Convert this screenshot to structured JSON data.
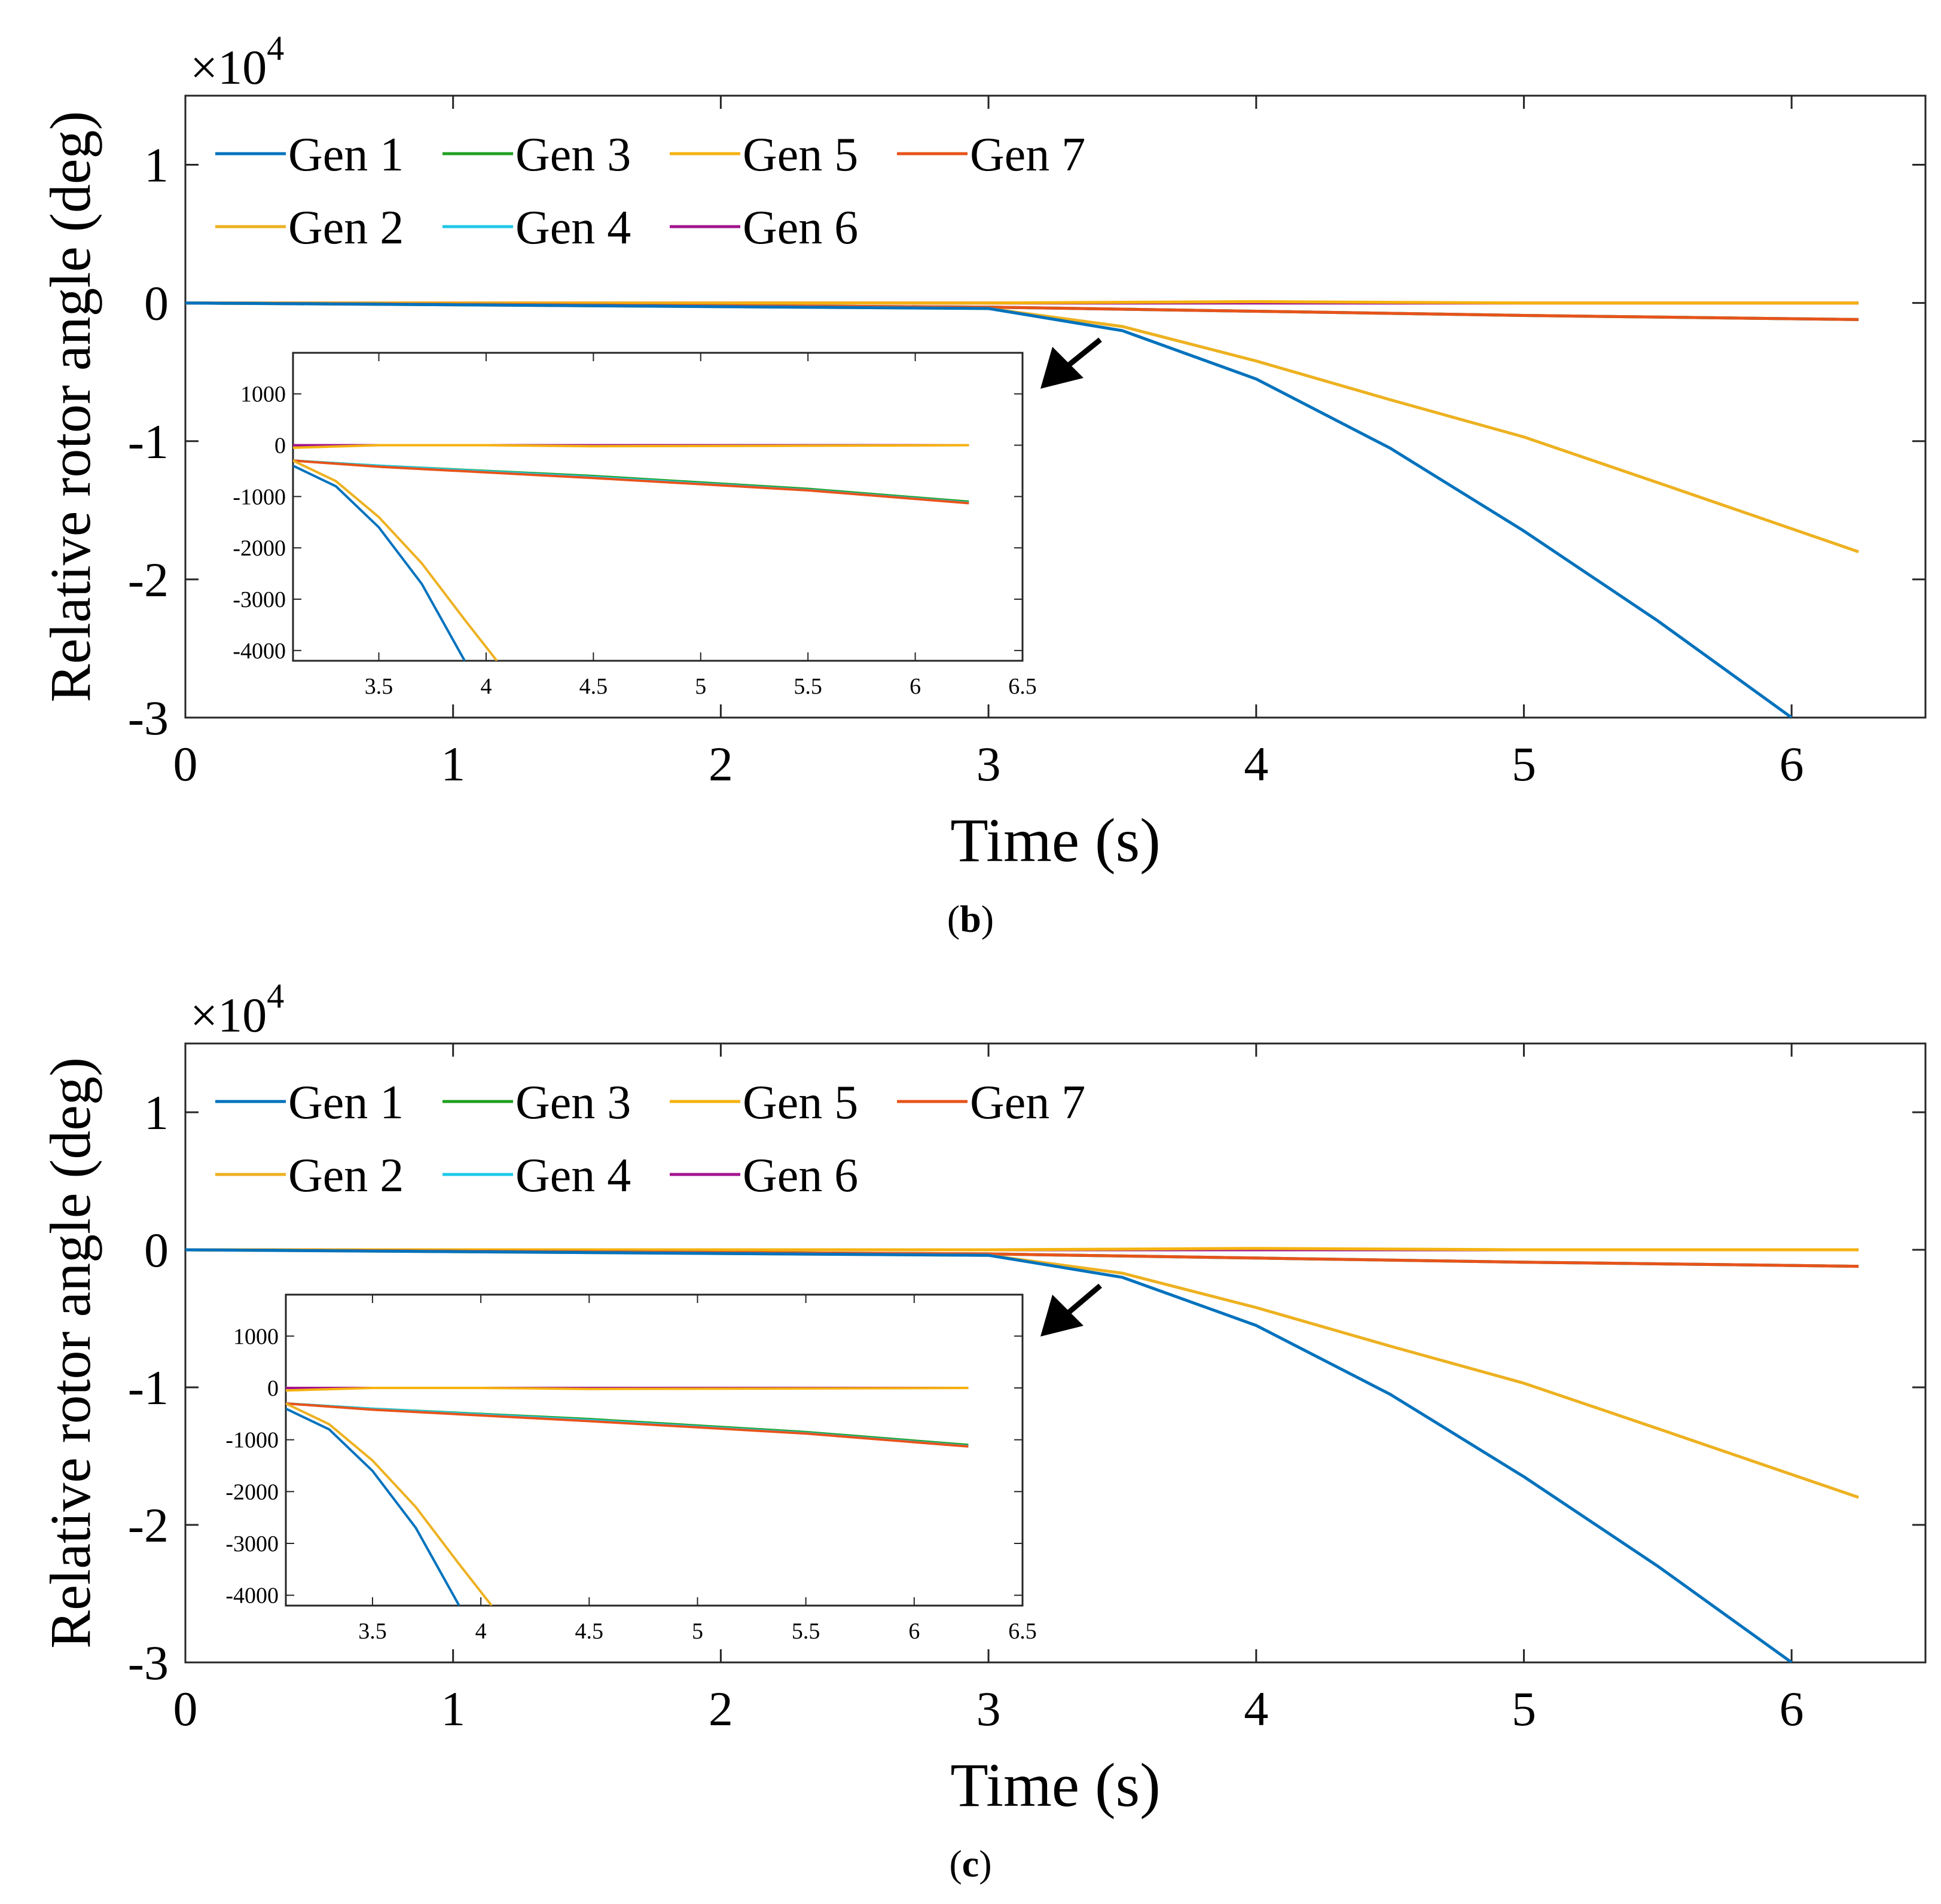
{
  "colors": {
    "Gen 1": "#0072bd",
    "Gen 2": "#edb120",
    "Gen 3": "#20a020",
    "Gen 4": "#1ec8e8",
    "Gen 5": "#f5b20f",
    "Gen 6": "#a2148e",
    "Gen 7": "#e8531a"
  },
  "chart_data": [
    {
      "type": "line",
      "panel_label": "b",
      "xlabel": "Time (s)",
      "ylabel": "Relative rotor angle (deg)",
      "exponent_label": "×10",
      "exponent_power": "4",
      "xlim": [
        0,
        6.5
      ],
      "ylim": [
        -3,
        1.5
      ],
      "xticks": [
        "0",
        "1",
        "2",
        "3",
        "4",
        "5",
        "6"
      ],
      "yticks": [
        "1",
        "0",
        "-1",
        "-2",
        "-3"
      ],
      "legend_position": "top-left",
      "legend_rows": [
        [
          "Gen 1",
          "Gen 3",
          "Gen 5",
          "Gen 7"
        ],
        [
          "Gen 2",
          "Gen 4",
          "Gen 6"
        ]
      ],
      "series": [
        {
          "name": "Gen 1",
          "x": [
            0,
            3,
            3.5,
            4,
            4.5,
            5,
            5.5,
            6
          ],
          "values": [
            0,
            -0.04,
            -0.2,
            -0.55,
            -1.05,
            -1.65,
            -2.3,
            -3.0
          ]
        },
        {
          "name": "Gen 2",
          "x": [
            0,
            3,
            3.5,
            4,
            4.5,
            5,
            5.5,
            6.25
          ],
          "values": [
            0,
            -0.04,
            -0.17,
            -0.42,
            -0.7,
            -0.97,
            -1.3,
            -1.8
          ]
        },
        {
          "name": "Gen 3",
          "x": [
            0,
            3,
            4,
            5,
            6.25
          ],
          "values": [
            0,
            -0.03,
            -0.06,
            -0.09,
            -0.12
          ]
        },
        {
          "name": "Gen 4",
          "x": [
            0,
            3,
            4,
            5,
            6.25
          ],
          "values": [
            0,
            -0.03,
            -0.06,
            -0.09,
            -0.12
          ]
        },
        {
          "name": "Gen 5",
          "x": [
            0,
            3,
            4,
            5,
            6.25
          ],
          "values": [
            0,
            0,
            0.01,
            0,
            0
          ]
        },
        {
          "name": "Gen 6",
          "x": [
            0,
            3,
            4,
            5,
            6.25
          ],
          "values": [
            0,
            0,
            0,
            0,
            0
          ]
        },
        {
          "name": "Gen 7",
          "x": [
            0,
            3,
            4,
            5,
            6.25
          ],
          "values": [
            0,
            -0.03,
            -0.06,
            -0.09,
            -0.12
          ]
        }
      ],
      "annotation": "arrow pointing to zoomed region",
      "inset": {
        "xlim": [
          3.1,
          6.5
        ],
        "ylim": [
          -4200,
          1800
        ],
        "xticks": [
          "3.5",
          "4",
          "4.5",
          "5",
          "5.5",
          "6",
          "6.5"
        ],
        "yticks": [
          "1000",
          "0",
          "-1000",
          "-2000",
          "-3000",
          "-4000"
        ],
        "series": [
          {
            "name": "Gen 1",
            "x": [
              3.1,
              3.3,
              3.5,
              3.7,
              3.9
            ],
            "values": [
              -400,
              -800,
              -1600,
              -2700,
              -4200
            ]
          },
          {
            "name": "Gen 2",
            "x": [
              3.1,
              3.3,
              3.5,
              3.7,
              3.9,
              4.05
            ],
            "values": [
              -300,
              -700,
              -1400,
              -2300,
              -3400,
              -4200
            ]
          },
          {
            "name": "Gen 3",
            "x": [
              3.1,
              3.5,
              4.5,
              5.5,
              6.25
            ],
            "values": [
              -300,
              -400,
              -600,
              -850,
              -1100
            ]
          },
          {
            "name": "Gen 4",
            "x": [
              3.1,
              3.5,
              4.5,
              5.5,
              6.25
            ],
            "values": [
              -300,
              -400,
              -620,
              -870,
              -1120
            ]
          },
          {
            "name": "Gen 5",
            "x": [
              3.1,
              3.5,
              4,
              4.5,
              5.5,
              6.25
            ],
            "values": [
              -50,
              0,
              0,
              -20,
              -10,
              0
            ]
          },
          {
            "name": "Gen 6",
            "x": [
              3.1,
              4,
              5,
              6.25
            ],
            "values": [
              0,
              0,
              0,
              0
            ]
          },
          {
            "name": "Gen 7",
            "x": [
              3.1,
              3.5,
              4.5,
              5.5,
              6.25
            ],
            "values": [
              -300,
              -420,
              -640,
              -880,
              -1130
            ]
          }
        ]
      }
    },
    {
      "type": "line",
      "panel_label": "c",
      "xlabel": "Time (s)",
      "ylabel": "Relative rotor angle (deg)",
      "exponent_label": "×10",
      "exponent_power": "4",
      "xlim": [
        0,
        6.5
      ],
      "ylim": [
        -3,
        1.5
      ],
      "xticks": [
        "0",
        "1",
        "2",
        "3",
        "4",
        "5",
        "6"
      ],
      "yticks": [
        "1",
        "0",
        "-1",
        "-2",
        "-3"
      ],
      "legend_position": "top-left",
      "legend_rows": [
        [
          "Gen 1",
          "Gen 3",
          "Gen 5",
          "Gen 7"
        ],
        [
          "Gen 2",
          "Gen 4",
          "Gen 6"
        ]
      ],
      "series": [
        {
          "name": "Gen 1",
          "x": [
            0,
            3,
            3.5,
            4,
            4.5,
            5,
            5.5,
            6
          ],
          "values": [
            0,
            -0.04,
            -0.2,
            -0.55,
            -1.05,
            -1.65,
            -2.3,
            -3.0
          ]
        },
        {
          "name": "Gen 2",
          "x": [
            0,
            3,
            3.5,
            4,
            4.5,
            5,
            5.5,
            6.25
          ],
          "values": [
            0,
            -0.04,
            -0.17,
            -0.42,
            -0.7,
            -0.97,
            -1.3,
            -1.8
          ]
        },
        {
          "name": "Gen 3",
          "x": [
            0,
            3,
            4,
            5,
            6.25
          ],
          "values": [
            0,
            -0.03,
            -0.06,
            -0.09,
            -0.12
          ]
        },
        {
          "name": "Gen 4",
          "x": [
            0,
            3,
            4,
            5,
            6.25
          ],
          "values": [
            0,
            -0.03,
            -0.06,
            -0.09,
            -0.12
          ]
        },
        {
          "name": "Gen 5",
          "x": [
            0,
            3,
            4,
            5,
            6.25
          ],
          "values": [
            0,
            0,
            0.01,
            0,
            0
          ]
        },
        {
          "name": "Gen 6",
          "x": [
            0,
            3,
            4,
            5,
            6.25
          ],
          "values": [
            0,
            0,
            0,
            0,
            0
          ]
        },
        {
          "name": "Gen 7",
          "x": [
            0,
            3,
            4,
            5,
            6.25
          ],
          "values": [
            0,
            -0.03,
            -0.06,
            -0.09,
            -0.12
          ]
        }
      ],
      "annotation": "arrow pointing to zoomed region",
      "inset": {
        "xlim": [
          3.1,
          6.5
        ],
        "ylim": [
          -4200,
          1800
        ],
        "xticks": [
          "3.5",
          "4",
          "4.5",
          "5",
          "5.5",
          "6",
          "6.5"
        ],
        "yticks": [
          "1000",
          "0",
          "-1000",
          "-2000",
          "-3000",
          "-4000"
        ],
        "series": [
          {
            "name": "Gen 1",
            "x": [
              3.1,
              3.3,
              3.5,
              3.7,
              3.9
            ],
            "values": [
              -400,
              -800,
              -1600,
              -2700,
              -4200
            ]
          },
          {
            "name": "Gen 2",
            "x": [
              3.1,
              3.3,
              3.5,
              3.7,
              3.9,
              4.05
            ],
            "values": [
              -300,
              -700,
              -1400,
              -2300,
              -3400,
              -4200
            ]
          },
          {
            "name": "Gen 3",
            "x": [
              3.1,
              3.5,
              4.5,
              5.5,
              6.25
            ],
            "values": [
              -300,
              -400,
              -600,
              -850,
              -1100
            ]
          },
          {
            "name": "Gen 4",
            "x": [
              3.1,
              3.5,
              4.5,
              5.5,
              6.25
            ],
            "values": [
              -300,
              -400,
              -620,
              -870,
              -1120
            ]
          },
          {
            "name": "Gen 5",
            "x": [
              3.1,
              3.5,
              4,
              4.5,
              5.5,
              6.25
            ],
            "values": [
              -50,
              0,
              0,
              -20,
              -10,
              0
            ]
          },
          {
            "name": "Gen 6",
            "x": [
              3.1,
              4,
              5,
              6.25
            ],
            "values": [
              0,
              0,
              0,
              0
            ]
          },
          {
            "name": "Gen 7",
            "x": [
              3.1,
              3.5,
              4.5,
              5.5,
              6.25
            ],
            "values": [
              -300,
              -420,
              -640,
              -880,
              -1130
            ]
          }
        ]
      }
    }
  ]
}
